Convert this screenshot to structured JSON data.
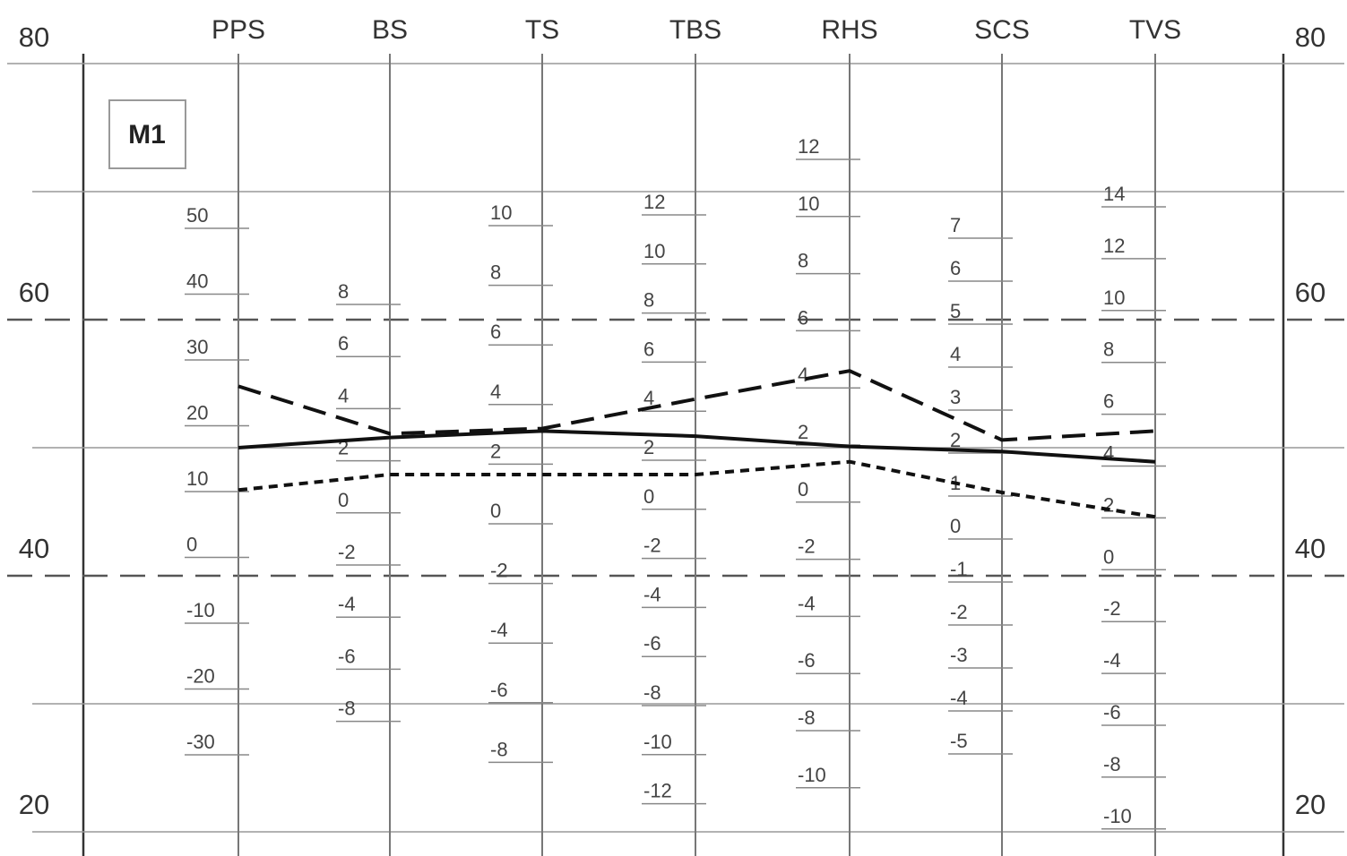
{
  "chart_data": {
    "type": "line",
    "title": "",
    "panel_label": "M1",
    "t_scale": {
      "ticks": [
        "80",
        "60",
        "40",
        "20"
      ],
      "ylim": [
        20,
        80
      ],
      "reference_lines": [
        60,
        40
      ]
    },
    "axes": [
      {
        "name": "PPS",
        "ticks": [
          "50",
          "40",
          "30",
          "20",
          "10",
          "0",
          "-10",
          "-20",
          "-30"
        ]
      },
      {
        "name": "BS",
        "ticks": [
          "8",
          "6",
          "4",
          "2",
          "0",
          "-2",
          "-4",
          "-6",
          "-8"
        ]
      },
      {
        "name": "TS",
        "ticks": [
          "10",
          "8",
          "6",
          "4",
          "2",
          "0",
          "-2",
          "-4",
          "-6",
          "-8"
        ]
      },
      {
        "name": "TBS",
        "ticks": [
          "12",
          "10",
          "8",
          "6",
          "4",
          "2",
          "0",
          "-2",
          "-4",
          "-6",
          "-8",
          "-10",
          "-12"
        ]
      },
      {
        "name": "RHS",
        "ticks": [
          "12",
          "10",
          "8",
          "6",
          "4",
          "2",
          "0",
          "-2",
          "-4",
          "-6",
          "-8",
          "-10"
        ]
      },
      {
        "name": "SCS",
        "ticks": [
          "7",
          "6",
          "5",
          "4",
          "3",
          "2",
          "1",
          "0",
          "-1",
          "-2",
          "-3",
          "-4",
          "-5"
        ]
      },
      {
        "name": "TVS",
        "ticks": [
          "14",
          "12",
          "10",
          "8",
          "6",
          "4",
          "2",
          "0",
          "-2",
          "-4",
          "-6",
          "-8",
          "-10"
        ]
      }
    ],
    "series": [
      {
        "style": "dashed",
        "values": [
          54.8,
          51.1,
          51.5,
          53.8,
          56.0,
          50.6,
          51.3
        ]
      },
      {
        "style": "solid",
        "values": [
          50.0,
          50.8,
          51.3,
          50.9,
          50.1,
          49.7,
          48.9
        ]
      },
      {
        "style": "dotted",
        "values": [
          46.7,
          47.9,
          47.9,
          47.9,
          48.9,
          46.5,
          44.6
        ]
      }
    ],
    "grid": true
  }
}
